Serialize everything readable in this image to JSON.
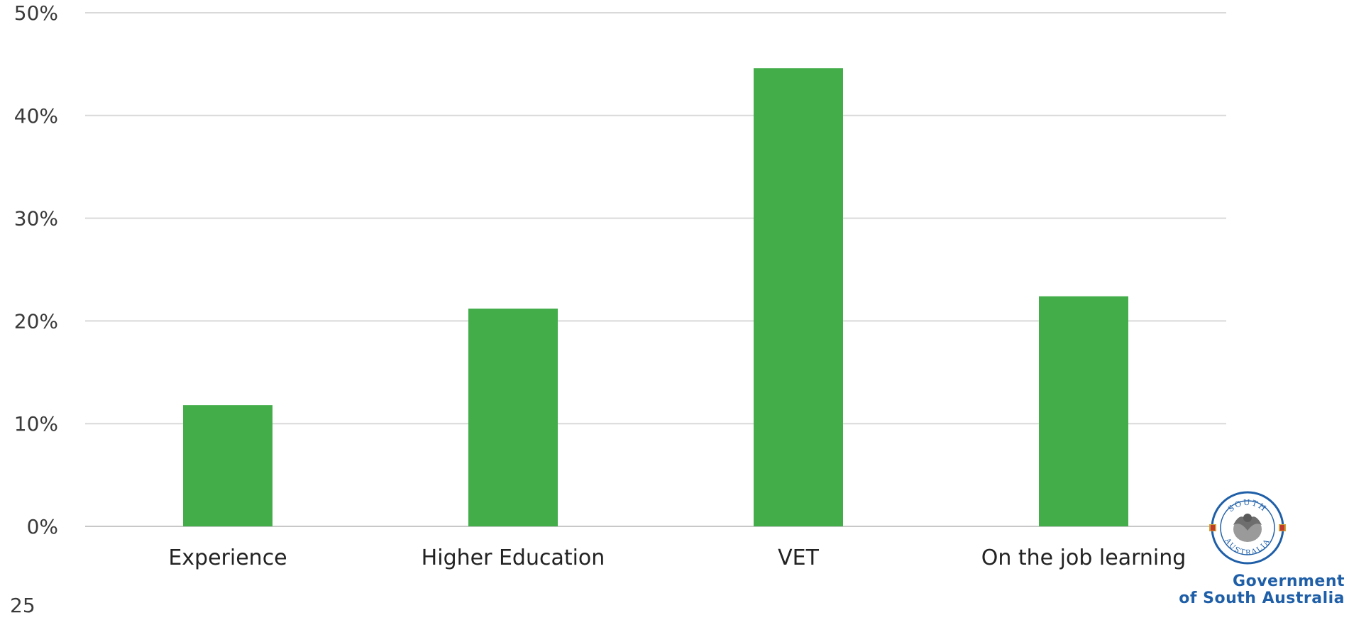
{
  "chart_data": {
    "type": "bar",
    "categories": [
      "Experience",
      "Higher Education",
      "VET",
      "On the job learning"
    ],
    "values": [
      11.8,
      21.2,
      44.6,
      22.4
    ],
    "title": "",
    "xlabel": "",
    "ylabel": "",
    "ylim": [
      0,
      50
    ],
    "yticks": [
      "0%",
      "10%",
      "20%",
      "30%",
      "40%",
      "50%"
    ],
    "grid": true,
    "legend": "none",
    "bar_color": "#43ad4a"
  },
  "page": {
    "number": "25"
  },
  "logo": {
    "seal_top_text": "SOUTH",
    "seal_bottom_text": "AUSTRALIA",
    "line1": "Government",
    "line2": "of South Australia",
    "color": "#1f5fa8"
  }
}
